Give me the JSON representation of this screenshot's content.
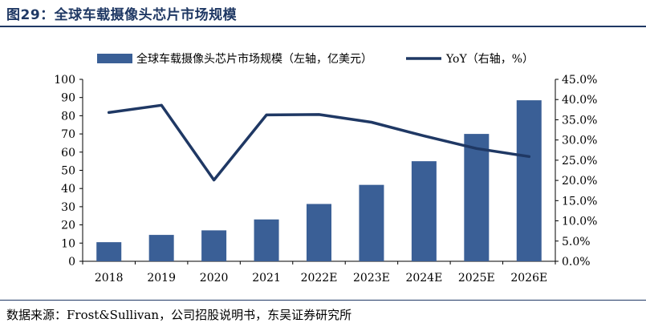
{
  "title": "图29：全球车载摄像头芯片市场规模",
  "source": "数据来源：Frost&Sullivan，公司招股说明书，东吴证券研究所",
  "chart_data": {
    "type": "bar+line",
    "categories": [
      "2018",
      "2019",
      "2020",
      "2021",
      "2022E",
      "2023E",
      "2024E",
      "2025E",
      "2026E"
    ],
    "series": [
      {
        "name": "全球车载摄像头芯片市场规模（左轴，亿美元）",
        "type": "bar",
        "axis": "left",
        "color": "#3a5f96",
        "values": [
          10.5,
          14.5,
          17.0,
          23.0,
          31.5,
          42.0,
          55.0,
          70.0,
          88.5
        ]
      },
      {
        "name": "YoY（右轴，%）",
        "type": "line",
        "axis": "right",
        "color": "#1f3864",
        "values": [
          36.8,
          38.6,
          20.1,
          36.2,
          36.3,
          34.4,
          31.0,
          27.9,
          25.9
        ]
      }
    ],
    "left_axis": {
      "min": 0,
      "max": 100,
      "step": 10,
      "tick_labels": [
        "0",
        "10",
        "20",
        "30",
        "40",
        "50",
        "60",
        "70",
        "80",
        "90",
        "100"
      ]
    },
    "right_axis": {
      "min": 0,
      "max": 45,
      "step": 5,
      "tick_labels": [
        "0.0%",
        "5.0%",
        "10.0%",
        "15.0%",
        "20.0%",
        "25.0%",
        "30.0%",
        "35.0%",
        "40.0%",
        "45.0%"
      ]
    },
    "grid": false,
    "legend_position": "top"
  }
}
